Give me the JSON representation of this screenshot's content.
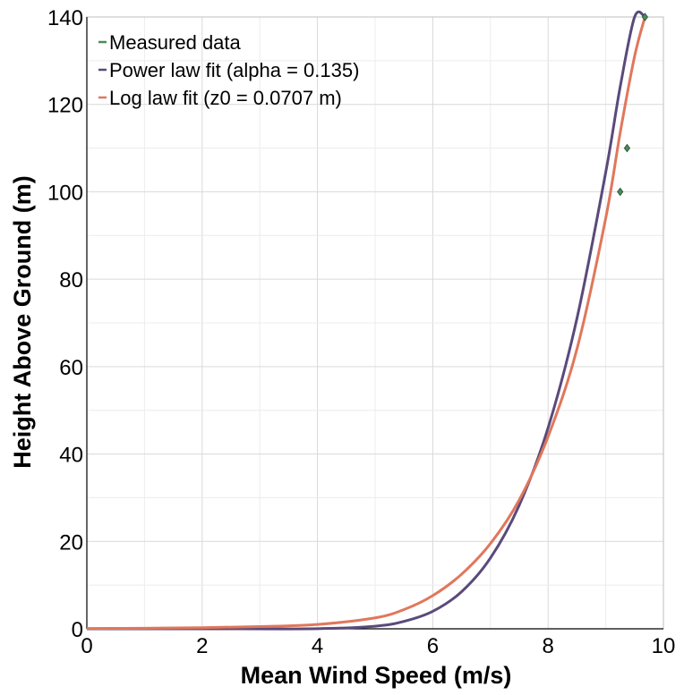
{
  "chart_data": {
    "type": "line",
    "title": "",
    "xlabel": "Mean Wind Speed (m/s)",
    "ylabel": "Height Above Ground (m)",
    "xlim": [
      0,
      10
    ],
    "ylim": [
      0,
      140
    ],
    "x_ticks": [
      0,
      2,
      4,
      6,
      8,
      10
    ],
    "y_ticks": [
      0,
      20,
      40,
      60,
      80,
      100,
      120,
      140
    ],
    "grid": true,
    "legend_position": "top-left",
    "series": [
      {
        "name": "Measured data",
        "kind": "scatter",
        "color": "#4c8c5c",
        "x": [
          9.25,
          9.37,
          9.68
        ],
        "y": [
          100,
          110,
          140
        ]
      },
      {
        "name": "Power law fit (alpha = 0.135)",
        "kind": "line",
        "color": "#5a4a7a",
        "x": [
          0,
          2,
          4,
          5,
          5.5,
          6,
          6.5,
          7,
          7.5,
          8,
          8.5,
          9,
          9.25,
          9.5,
          9.68
        ],
        "y": [
          0,
          0.0,
          0.03,
          0.6,
          1.7,
          4.0,
          8.5,
          16.2,
          28.3,
          46.0,
          71.0,
          104.5,
          124.0,
          147.0,
          140
        ]
      },
      {
        "name": "Log law fit (z0 = 0.0707 m)",
        "kind": "line",
        "color": "#e0775c",
        "x": [
          0,
          1,
          2,
          3,
          4,
          5,
          5.5,
          6,
          6.5,
          7,
          7.5,
          8,
          8.5,
          9,
          9.25,
          9.5,
          9.68
        ],
        "y": [
          0.07,
          0.14,
          0.26,
          0.51,
          1.0,
          2.5,
          4.4,
          7.6,
          12.5,
          19.5,
          29.5,
          44.0,
          64.0,
          94.0,
          113.5,
          131.0,
          140
        ]
      }
    ]
  }
}
